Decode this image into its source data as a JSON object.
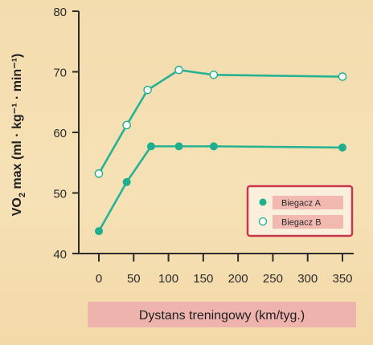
{
  "chart_data": {
    "type": "line",
    "xlabel": "Dystans treningowy (km/tyg.)",
    "ylabel_main": "VO",
    "ylabel_sub": "2",
    "ylabel_rest": " max (ml · kg⁻¹ · min⁻¹)",
    "xlim": [
      0,
      350
    ],
    "ylim": [
      40,
      80
    ],
    "x_ticks": [
      0,
      50,
      100,
      150,
      200,
      250,
      300,
      350
    ],
    "y_ticks": [
      40,
      50,
      60,
      70,
      80
    ],
    "legend_position": "lower-right",
    "series": [
      {
        "name": "Biegacz A",
        "marker": "filled",
        "color": "#1fae8e",
        "x": [
          0,
          40,
          75,
          115,
          165,
          350
        ],
        "y": [
          43.7,
          51.8,
          57.7,
          57.7,
          57.7,
          57.5
        ]
      },
      {
        "name": "Biegacz B",
        "marker": "open",
        "color": "#1fae8e",
        "x": [
          0,
          40,
          70,
          115,
          165,
          350
        ],
        "y": [
          53.2,
          61.2,
          67.0,
          70.3,
          69.5,
          69.2
        ]
      }
    ]
  },
  "colors": {
    "line": "#27b393",
    "axis": "#2b2b2b",
    "xlabel_box": "#efb3ad",
    "legend_border": "#c9374c",
    "legend_bg": "#fbefdc",
    "legend_label_bg": "#f2b9b1"
  }
}
